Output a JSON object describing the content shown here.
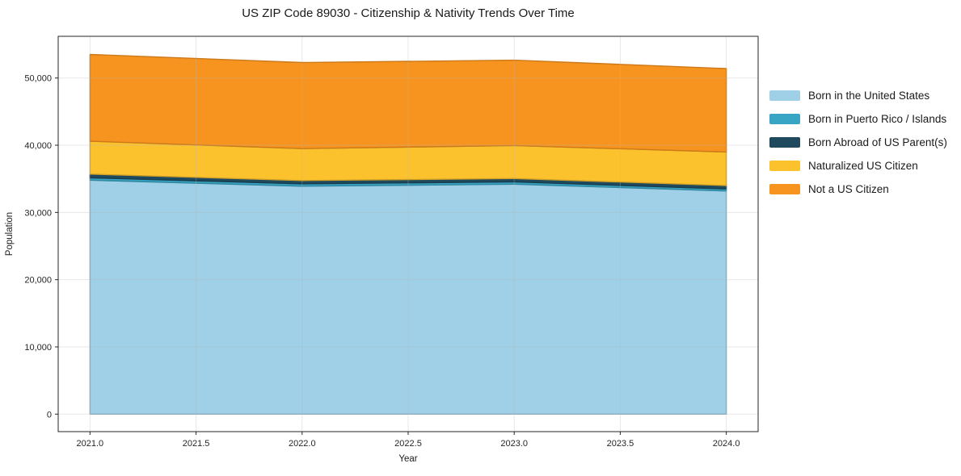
{
  "title": "US ZIP Code 89030 - Citizenship & Nativity Trends Over Time",
  "axes": {
    "x_label": "Year",
    "y_label": "Population",
    "x_tick_labels": [
      "2021.0",
      "2021.5",
      "2022.0",
      "2022.5",
      "2023.0",
      "2023.5",
      "2024.0"
    ],
    "x_tick_values": [
      2021.0,
      2021.5,
      2022.0,
      2022.5,
      2023.0,
      2023.5,
      2024.0
    ],
    "y_tick_labels": [
      "0",
      "10,000",
      "20,000",
      "30,000",
      "40,000",
      "50,000"
    ],
    "y_tick_values": [
      0,
      10000,
      20000,
      30000,
      40000,
      50000
    ]
  },
  "chart_data": {
    "type": "area",
    "stacked": true,
    "title": "US ZIP Code 89030 - Citizenship & Nativity Trends Over Time",
    "xlabel": "Year",
    "ylabel": "Population",
    "x": [
      2021,
      2022,
      2023,
      2024
    ],
    "series": [
      {
        "name": "Born in the United States",
        "color": "#9FD0E7",
        "values": [
          34800,
          33900,
          34200,
          33200
        ]
      },
      {
        "name": "Born in Puerto Rico / Islands",
        "color": "#39A5C4",
        "values": [
          350,
          350,
          350,
          300
        ]
      },
      {
        "name": "Born Abroad of US Parent(s)",
        "color": "#1F4A5E",
        "values": [
          550,
          500,
          500,
          500
        ]
      },
      {
        "name": "Naturalized US Citizen",
        "color": "#FCC22E",
        "values": [
          4900,
          4750,
          4900,
          5000
        ]
      },
      {
        "name": "Not a US Citizen",
        "color": "#F7941F",
        "values": [
          12900,
          12800,
          12700,
          12400
        ]
      }
    ],
    "totals": [
      53500,
      52300,
      52650,
      51400
    ],
    "xlim": [
      2020.85,
      2024.15
    ],
    "ylim": [
      -2605,
      56205
    ],
    "grid": true,
    "legend_position": "right",
    "frame_color": "#262626",
    "grid_color": "rgba(180,180,180,0.32)",
    "background_color": "#ffffff"
  }
}
